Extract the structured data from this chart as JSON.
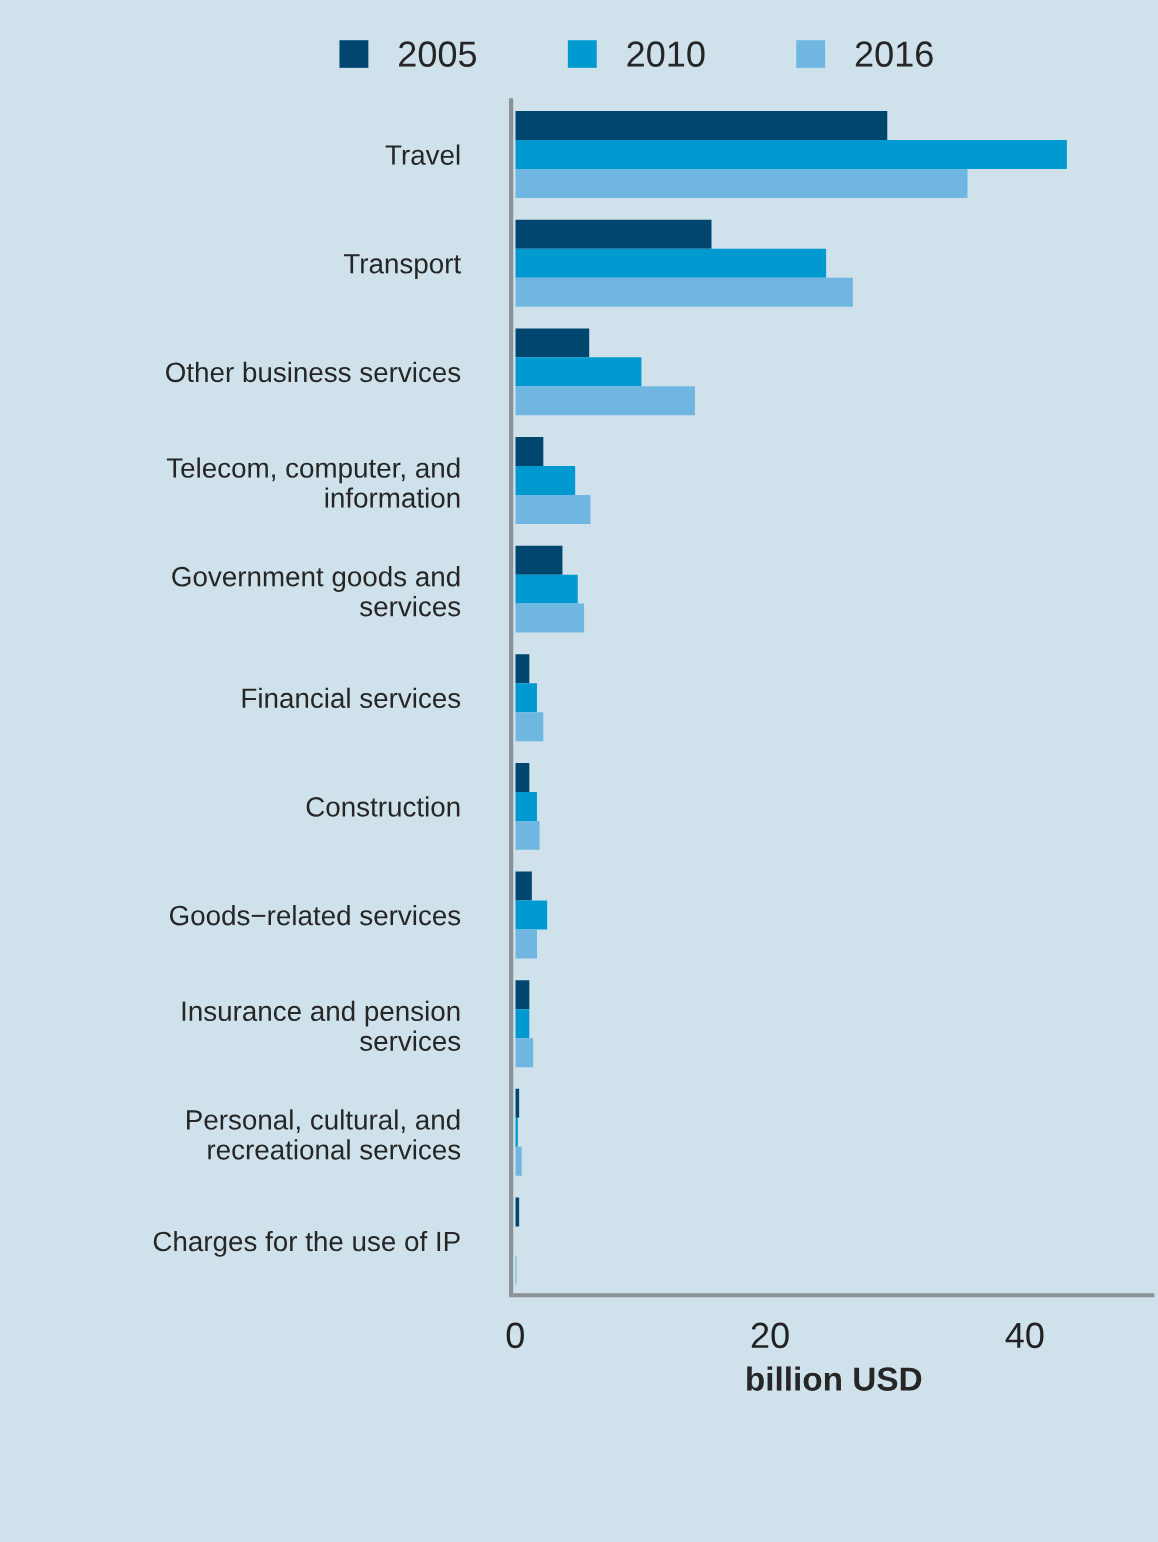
{
  "chart_data": {
    "type": "bar",
    "orientation": "horizontal",
    "xlabel": "billion USD",
    "categories": [
      "Travel",
      "Transport",
      "Other business services",
      "Telecom, computer, and information",
      "Government goods and services",
      "Financial services",
      "Construction",
      "Goods−related services",
      "Insurance and pension services",
      "Personal, cultural, and recreational services",
      "Charges for the use of IP"
    ],
    "series": [
      {
        "name": "2005",
        "color": "#00466f",
        "values": [
          29.2,
          15.4,
          5.8,
          2.2,
          3.7,
          1.1,
          1.1,
          1.3,
          1.1,
          0.3,
          0.3
        ]
      },
      {
        "name": "2010",
        "color": "#0099d0",
        "values": [
          43.3,
          24.4,
          9.9,
          4.7,
          4.9,
          1.7,
          1.7,
          2.5,
          1.1,
          0.2,
          0
        ]
      },
      {
        "name": "2016",
        "color": "#6fb6e0",
        "values": [
          35.5,
          26.5,
          14.1,
          5.9,
          5.4,
          2.2,
          1.9,
          1.7,
          1.4,
          0.5,
          0.1
        ]
      }
    ],
    "xlim": [
      0,
      50
    ],
    "xticks": [
      0,
      20,
      40
    ],
    "legend": "top",
    "grid": false
  }
}
